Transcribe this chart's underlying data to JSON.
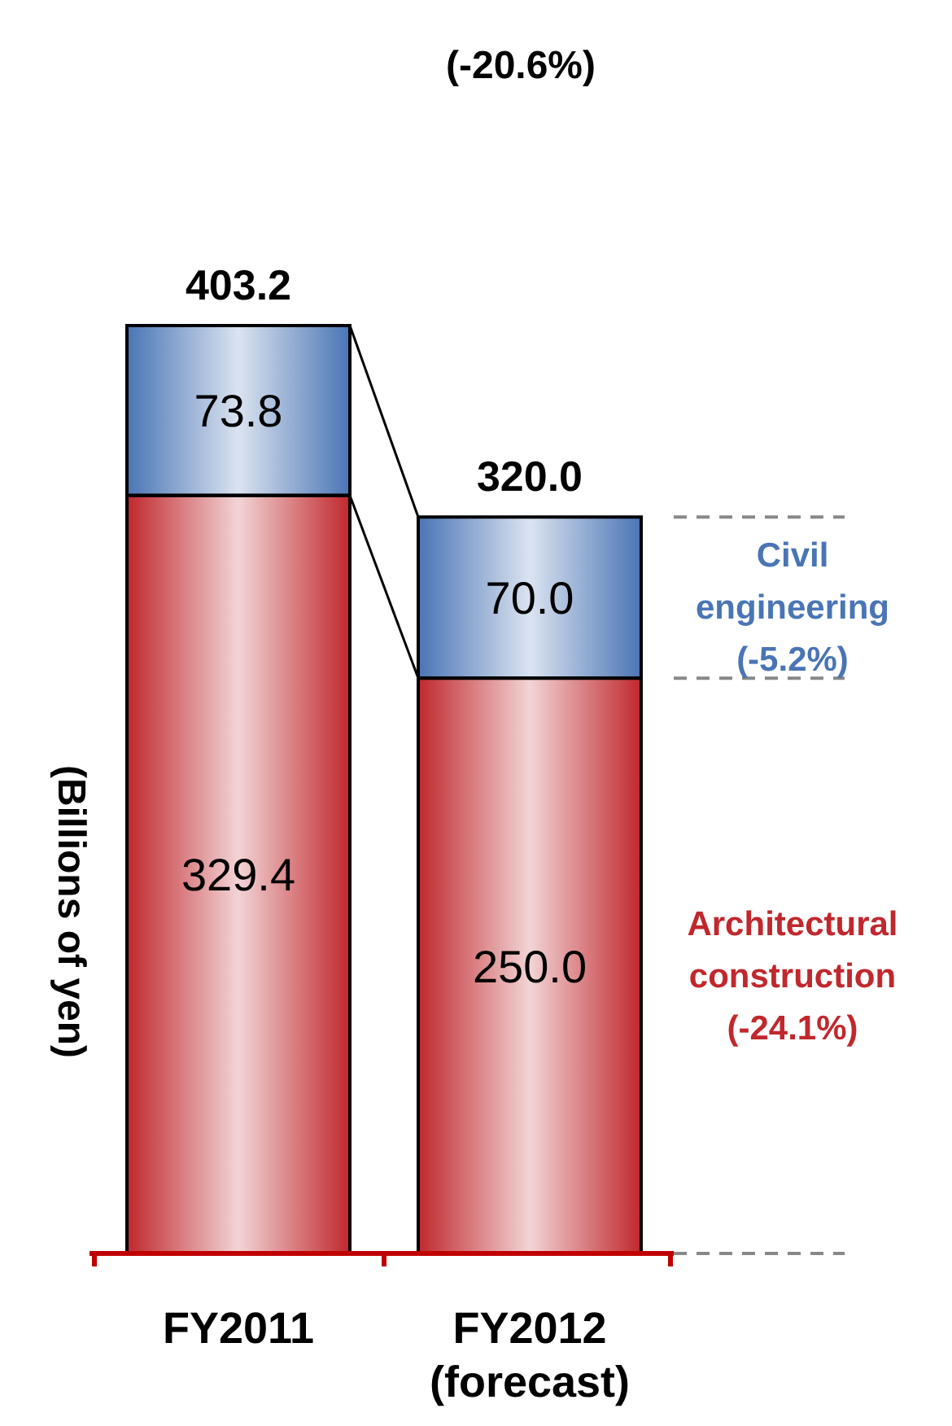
{
  "chart_data": {
    "type": "bar",
    "stacked": true,
    "title": "(-20.6%)",
    "ylabel": "(Billions of yen)",
    "categories": [
      "FY2011",
      "FY2012 (forecast)"
    ],
    "series": [
      {
        "name": "Architectural construction",
        "color": "#c0282d",
        "values": [
          329.4,
          250.0
        ],
        "value_labels": [
          "329.4",
          "250.0"
        ]
      },
      {
        "name": "Civil engineering",
        "color": "#4a75b5",
        "values": [
          73.8,
          70.0
        ],
        "value_labels": [
          "73.8",
          "70.0"
        ]
      }
    ],
    "totals": [
      "403.2",
      "320.0"
    ],
    "annotations": [
      "(-5.2%)",
      "(-24.1%)"
    ]
  }
}
